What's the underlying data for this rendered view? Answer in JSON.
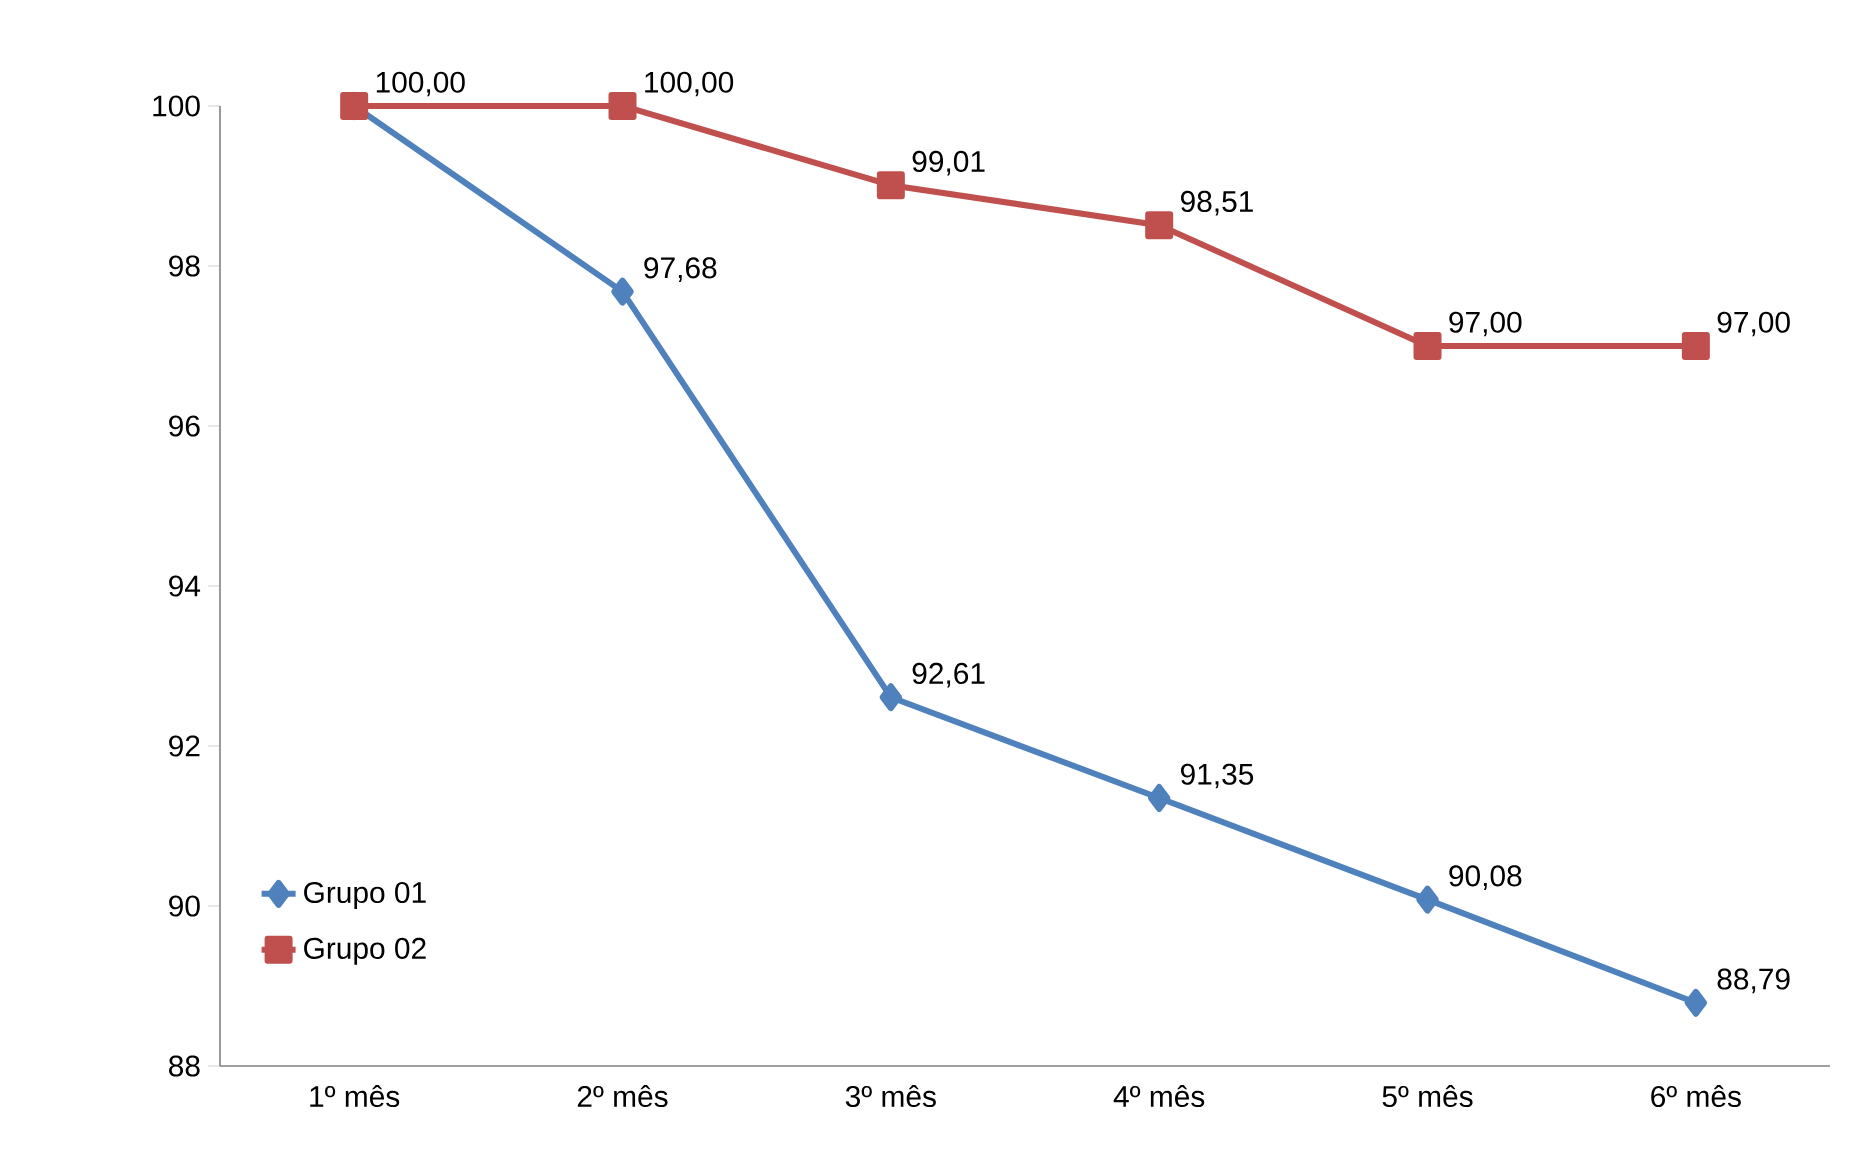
{
  "chart_data": {
    "type": "line",
    "categories": [
      "1º mês",
      "2º mês",
      "3º mês",
      "4º mês",
      "5º mês",
      "6º mês"
    ],
    "series": [
      {
        "name": "Grupo 01",
        "color": "#4f81bd",
        "marker": "diamond",
        "values": [
          100,
          97.68,
          92.61,
          91.35,
          90.08,
          88.79
        ],
        "value_labels": [
          null,
          "97,68",
          "92,61",
          "91,35",
          "90,08",
          "88,79"
        ]
      },
      {
        "name": "Grupo 02",
        "color": "#c0504d",
        "marker": "square",
        "values": [
          100,
          100,
          99.01,
          98.51,
          97,
          97
        ],
        "value_labels": [
          "100,00",
          "100,00",
          "99,01",
          "98,51",
          "97,00",
          "97,00"
        ]
      }
    ],
    "ylim": [
      88,
      100
    ],
    "yticks": [
      88,
      90,
      92,
      94,
      96,
      98,
      100
    ],
    "grid": false,
    "legend": "bottom left",
    "line_style": "solid"
  }
}
